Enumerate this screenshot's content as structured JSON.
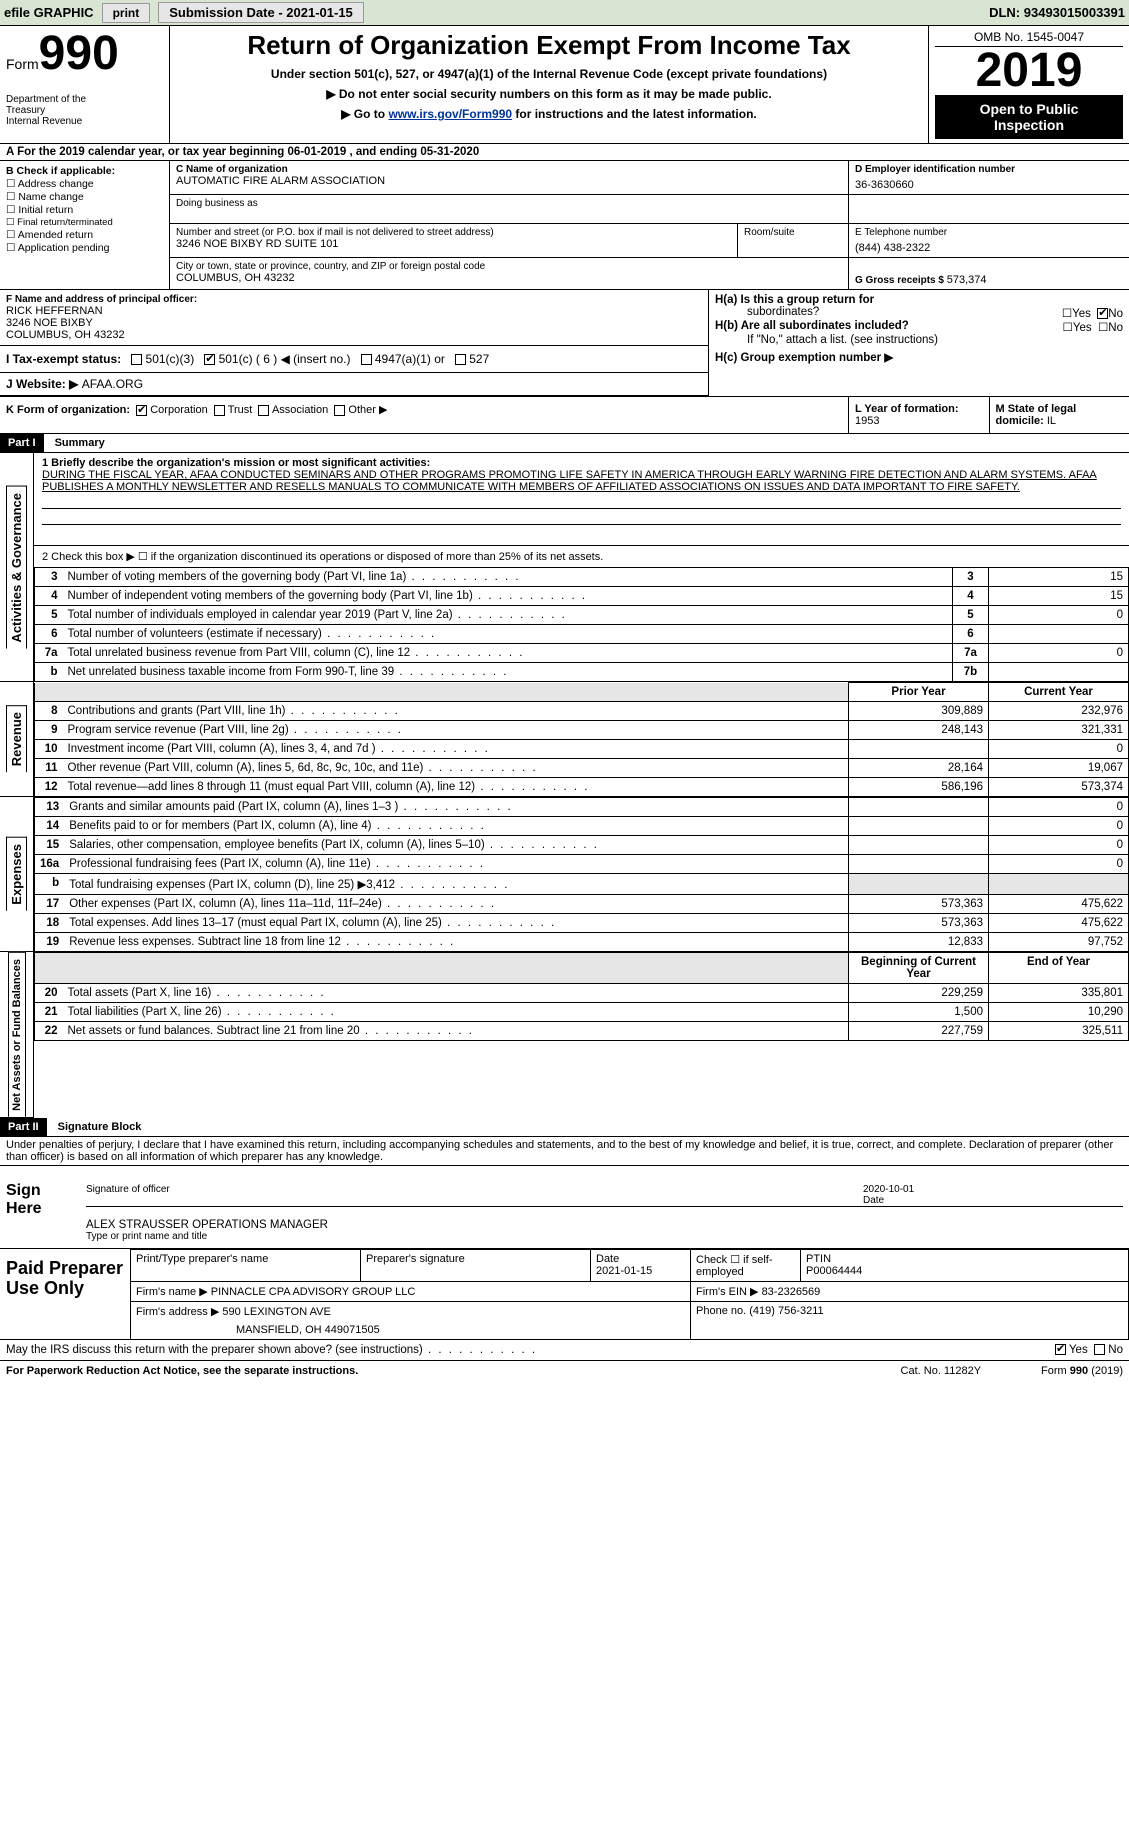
{
  "topbar": {
    "efile": "efile GRAPHIC",
    "print": "print",
    "submission_label": "Submission Date - ",
    "submission_date": "2021-01-15",
    "dln_label": "DLN: ",
    "dln": "93493015003391"
  },
  "header": {
    "form_word": "Form",
    "form_no": "990",
    "dept1": "Department of the",
    "dept2": "Treasury",
    "dept3": "Internal Revenue",
    "title": "Return of Organization Exempt From Income Tax",
    "sub1": "Under section 501(c), 527, or 4947(a)(1) of the Internal Revenue Code (except private foundations)",
    "sub2": "▶ Do not enter social security numbers on this form as it may be made public.",
    "sub3a": "▶ Go to ",
    "sub3link": "www.irs.gov/Form990",
    "sub3b": " for instructions and the latest information.",
    "omb": "OMB No. 1545-0047",
    "year": "2019",
    "open1": "Open to Public",
    "open2": "Inspection"
  },
  "A": {
    "text_a": "A For the 2019 calendar year, or tax year beginning ",
    "begin": "06-01-2019",
    "mid": "  , and ending ",
    "end": "05-31-2020"
  },
  "B": {
    "title": "B Check if applicable:",
    "items": [
      "Address change",
      "Name change",
      "Initial return",
      "Final return/terminated",
      "Amended return",
      "Application pending"
    ]
  },
  "C": {
    "name_lbl": "C Name of organization",
    "name": "AUTOMATIC FIRE ALARM ASSOCIATION",
    "dba_lbl": "Doing business as",
    "street_lbl": "Number and street (or P.O. box if mail is not delivered to street address)",
    "room_lbl": "Room/suite",
    "street": "3246 NOE BIXBY RD SUITE 101",
    "city_lbl": "City or town, state or province, country, and ZIP or foreign postal code",
    "city": "COLUMBUS, OH  43232"
  },
  "D": {
    "lbl": "D Employer identification number",
    "val": "36-3630660"
  },
  "E": {
    "lbl": "E Telephone number",
    "val": "(844) 438-2322"
  },
  "G": {
    "lbl": "G Gross receipts $ ",
    "val": "573,374"
  },
  "F": {
    "lbl": "F  Name and address of principal officer:",
    "name": "RICK HEFFERNAN",
    "addr1": "3246 NOE BIXBY",
    "addr2": "COLUMBUS, OH  43232"
  },
  "H": {
    "a1": "H(a)  Is this a group return for",
    "a2": "subordinates?",
    "b1": "H(b)  Are all subordinates included?",
    "b2": "If \"No,\" attach a list. (see instructions)",
    "c": "H(c)  Group exemption number ▶"
  },
  "I": {
    "lbl": "I  Tax-exempt status:",
    "opt1": "501(c)(3)",
    "opt2": "501(c) ( 6 ) ◀ (insert no.)",
    "opt3": "4947(a)(1) or",
    "opt4": "527"
  },
  "J": {
    "lbl": "J   Website: ▶ ",
    "val": "AFAA.ORG"
  },
  "K": {
    "lbl": "K Form of organization:",
    "opts": [
      "Corporation",
      "Trust",
      "Association",
      "Other ▶"
    ]
  },
  "L": {
    "lbl": "L Year of formation: ",
    "val": "1953"
  },
  "M": {
    "lbl": "M State of legal domicile: ",
    "val": "IL"
  },
  "part1": {
    "hdr": "Part I",
    "title": "Summary"
  },
  "mission": {
    "line1_lbl": "1   Briefly describe the organization's mission or most significant activities:",
    "text": "DURING THE FISCAL YEAR, AFAA CONDUCTED SEMINARS AND OTHER PROGRAMS PROMOTING LIFE SAFETY IN AMERICA THROUGH EARLY WARNING FIRE DETECTION AND ALARM SYSTEMS. AFAA PUBLISHES A MONTHLY NEWSLETTER AND RESELLS MANUALS TO COMMUNICATE WITH MEMBERS OF AFFILIATED ASSOCIATIONS ON ISSUES AND DATA IMPORTANT TO FIRE SAFETY."
  },
  "gov": {
    "l2": "2    Check this box ▶ ☐  if the organization discontinued its operations or disposed of more than 25% of its net assets.",
    "rows": [
      {
        "n": "3",
        "d": "Number of voting members of the governing body (Part VI, line 1a)",
        "box": "3",
        "v": "15"
      },
      {
        "n": "4",
        "d": "Number of independent voting members of the governing body (Part VI, line 1b)",
        "box": "4",
        "v": "15"
      },
      {
        "n": "5",
        "d": "Total number of individuals employed in calendar year 2019 (Part V, line 2a)",
        "box": "5",
        "v": "0"
      },
      {
        "n": "6",
        "d": "Total number of volunteers (estimate if necessary)",
        "box": "6",
        "v": ""
      },
      {
        "n": "7a",
        "d": "Total unrelated business revenue from Part VIII, column (C), line 12",
        "box": "7a",
        "v": "0"
      },
      {
        "n": "b",
        "d": "Net unrelated business taxable income from Form 990-T, line 39",
        "box": "7b",
        "v": ""
      }
    ]
  },
  "colhdr": {
    "prior": "Prior Year",
    "current": "Current Year"
  },
  "revenue": {
    "label": "Revenue",
    "rows": [
      {
        "n": "8",
        "d": "Contributions and grants (Part VIII, line 1h)",
        "p": "309,889",
        "c": "232,976"
      },
      {
        "n": "9",
        "d": "Program service revenue (Part VIII, line 2g)",
        "p": "248,143",
        "c": "321,331"
      },
      {
        "n": "10",
        "d": "Investment income (Part VIII, column (A), lines 3, 4, and 7d )",
        "p": "",
        "c": "0"
      },
      {
        "n": "11",
        "d": "Other revenue (Part VIII, column (A), lines 5, 6d, 8c, 9c, 10c, and 11e)",
        "p": "28,164",
        "c": "19,067"
      },
      {
        "n": "12",
        "d": "Total revenue—add lines 8 through 11 (must equal Part VIII, column (A), line 12)",
        "p": "586,196",
        "c": "573,374"
      }
    ]
  },
  "expenses": {
    "label": "Expenses",
    "rows": [
      {
        "n": "13",
        "d": "Grants and similar amounts paid (Part IX, column (A), lines 1–3 )",
        "p": "",
        "c": "0"
      },
      {
        "n": "14",
        "d": "Benefits paid to or for members (Part IX, column (A), line 4)",
        "p": "",
        "c": "0"
      },
      {
        "n": "15",
        "d": "Salaries, other compensation, employee benefits (Part IX, column (A), lines 5–10)",
        "p": "",
        "c": "0"
      },
      {
        "n": "16a",
        "d": "Professional fundraising fees (Part IX, column (A), line 11e)",
        "p": "",
        "c": "0"
      },
      {
        "n": "b",
        "d": "Total fundraising expenses (Part IX, column (D), line 25) ▶3,412",
        "p": "shade",
        "c": "shade"
      },
      {
        "n": "17",
        "d": "Other expenses (Part IX, column (A), lines 11a–11d, 11f–24e)",
        "p": "573,363",
        "c": "475,622"
      },
      {
        "n": "18",
        "d": "Total expenses. Add lines 13–17 (must equal Part IX, column (A), line 25)",
        "p": "573,363",
        "c": "475,622"
      },
      {
        "n": "19",
        "d": "Revenue less expenses. Subtract line 18 from line 12",
        "p": "12,833",
        "c": "97,752"
      }
    ]
  },
  "netassets": {
    "label": "Net Assets or Fund Balances",
    "hdr_p": "Beginning of Current Year",
    "hdr_c": "End of Year",
    "rows": [
      {
        "n": "20",
        "d": "Total assets (Part X, line 16)",
        "p": "229,259",
        "c": "335,801"
      },
      {
        "n": "21",
        "d": "Total liabilities (Part X, line 26)",
        "p": "1,500",
        "c": "10,290"
      },
      {
        "n": "22",
        "d": "Net assets or fund balances. Subtract line 21 from line 20",
        "p": "227,759",
        "c": "325,511"
      }
    ]
  },
  "part2": {
    "hdr": "Part II",
    "title": "Signature Block"
  },
  "sigtext": "Under penalties of perjury, I declare that I have examined this return, including accompanying schedules and statements, and to the best of my knowledge and belief, it is true, correct, and complete. Declaration of preparer (other than officer) is based on all information of which preparer has any knowledge.",
  "sign": {
    "here": "Sign Here",
    "sig_of": "Signature of officer",
    "date_lbl": "Date",
    "date": "2020-10-01",
    "name": "ALEX STRAUSSER  OPERATIONS MANAGER",
    "name_lbl": "Type or print name and title"
  },
  "prep": {
    "lbl": "Paid Preparer Use Only",
    "h1": "Print/Type preparer's name",
    "h2": "Preparer's signature",
    "h3_lbl": "Date",
    "h3": "2021-01-15",
    "h4": "Check ☐ if self-employed",
    "h5_lbl": "PTIN",
    "h5": "P00064444",
    "firm_name_lbl": "Firm's name    ▶ ",
    "firm_name": "PINNACLE CPA ADVISORY GROUP LLC",
    "ein_lbl": "Firm's EIN ▶ ",
    "ein": "83-2326569",
    "addr_lbl": "Firm's address ▶ ",
    "addr1": "590 LEXINGTON AVE",
    "addr2": "MANSFIELD, OH  449071505",
    "phone_lbl": "Phone no. ",
    "phone": "(419) 756-3211"
  },
  "discuss": "May the IRS discuss this return with the preparer shown above? (see instructions)",
  "footer": {
    "left": "For Paperwork Reduction Act Notice, see the separate instructions.",
    "mid": "Cat. No. 11282Y",
    "right": "Form 990 (2019)"
  },
  "yes": "Yes",
  "no": "No"
}
